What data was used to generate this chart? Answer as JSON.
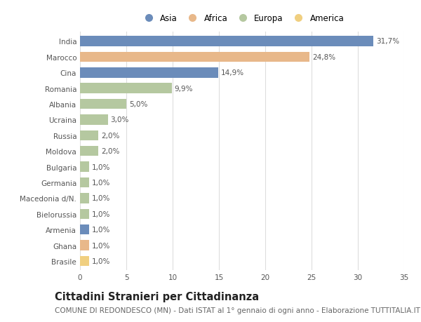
{
  "countries": [
    "India",
    "Marocco",
    "Cina",
    "Romania",
    "Albania",
    "Ucraina",
    "Russia",
    "Moldova",
    "Bulgaria",
    "Germania",
    "Macedonia d/N.",
    "Bielorussia",
    "Armenia",
    "Ghana",
    "Brasile"
  ],
  "values": [
    31.7,
    24.8,
    14.9,
    9.9,
    5.0,
    3.0,
    2.0,
    2.0,
    1.0,
    1.0,
    1.0,
    1.0,
    1.0,
    1.0,
    1.0
  ],
  "labels": [
    "31,7%",
    "24,8%",
    "14,9%",
    "9,9%",
    "5,0%",
    "3,0%",
    "2,0%",
    "2,0%",
    "1,0%",
    "1,0%",
    "1,0%",
    "1,0%",
    "1,0%",
    "1,0%",
    "1,0%"
  ],
  "continent": [
    "Asia",
    "Africa",
    "Asia",
    "Europa",
    "Europa",
    "Europa",
    "Europa",
    "Europa",
    "Europa",
    "Europa",
    "Europa",
    "Europa",
    "Asia",
    "Africa",
    "America"
  ],
  "colors": {
    "Asia": "#6b8cba",
    "Africa": "#e8b88a",
    "Europa": "#b5c8a0",
    "America": "#f0cf80"
  },
  "legend_order": [
    "Asia",
    "Africa",
    "Europa",
    "America"
  ],
  "title": "Cittadini Stranieri per Cittadinanza",
  "subtitle": "COMUNE DI REDONDESCO (MN) - Dati ISTAT al 1° gennaio di ogni anno - Elaborazione TUTTITALIA.IT",
  "xlim": [
    0,
    35
  ],
  "xticks": [
    0,
    5,
    10,
    15,
    20,
    25,
    30,
    35
  ],
  "background_color": "#ffffff",
  "grid_color": "#dddddd",
  "bar_height": 0.65,
  "title_fontsize": 10.5,
  "subtitle_fontsize": 7.5,
  "label_fontsize": 7.5,
  "tick_fontsize": 7.5,
  "legend_fontsize": 8.5
}
